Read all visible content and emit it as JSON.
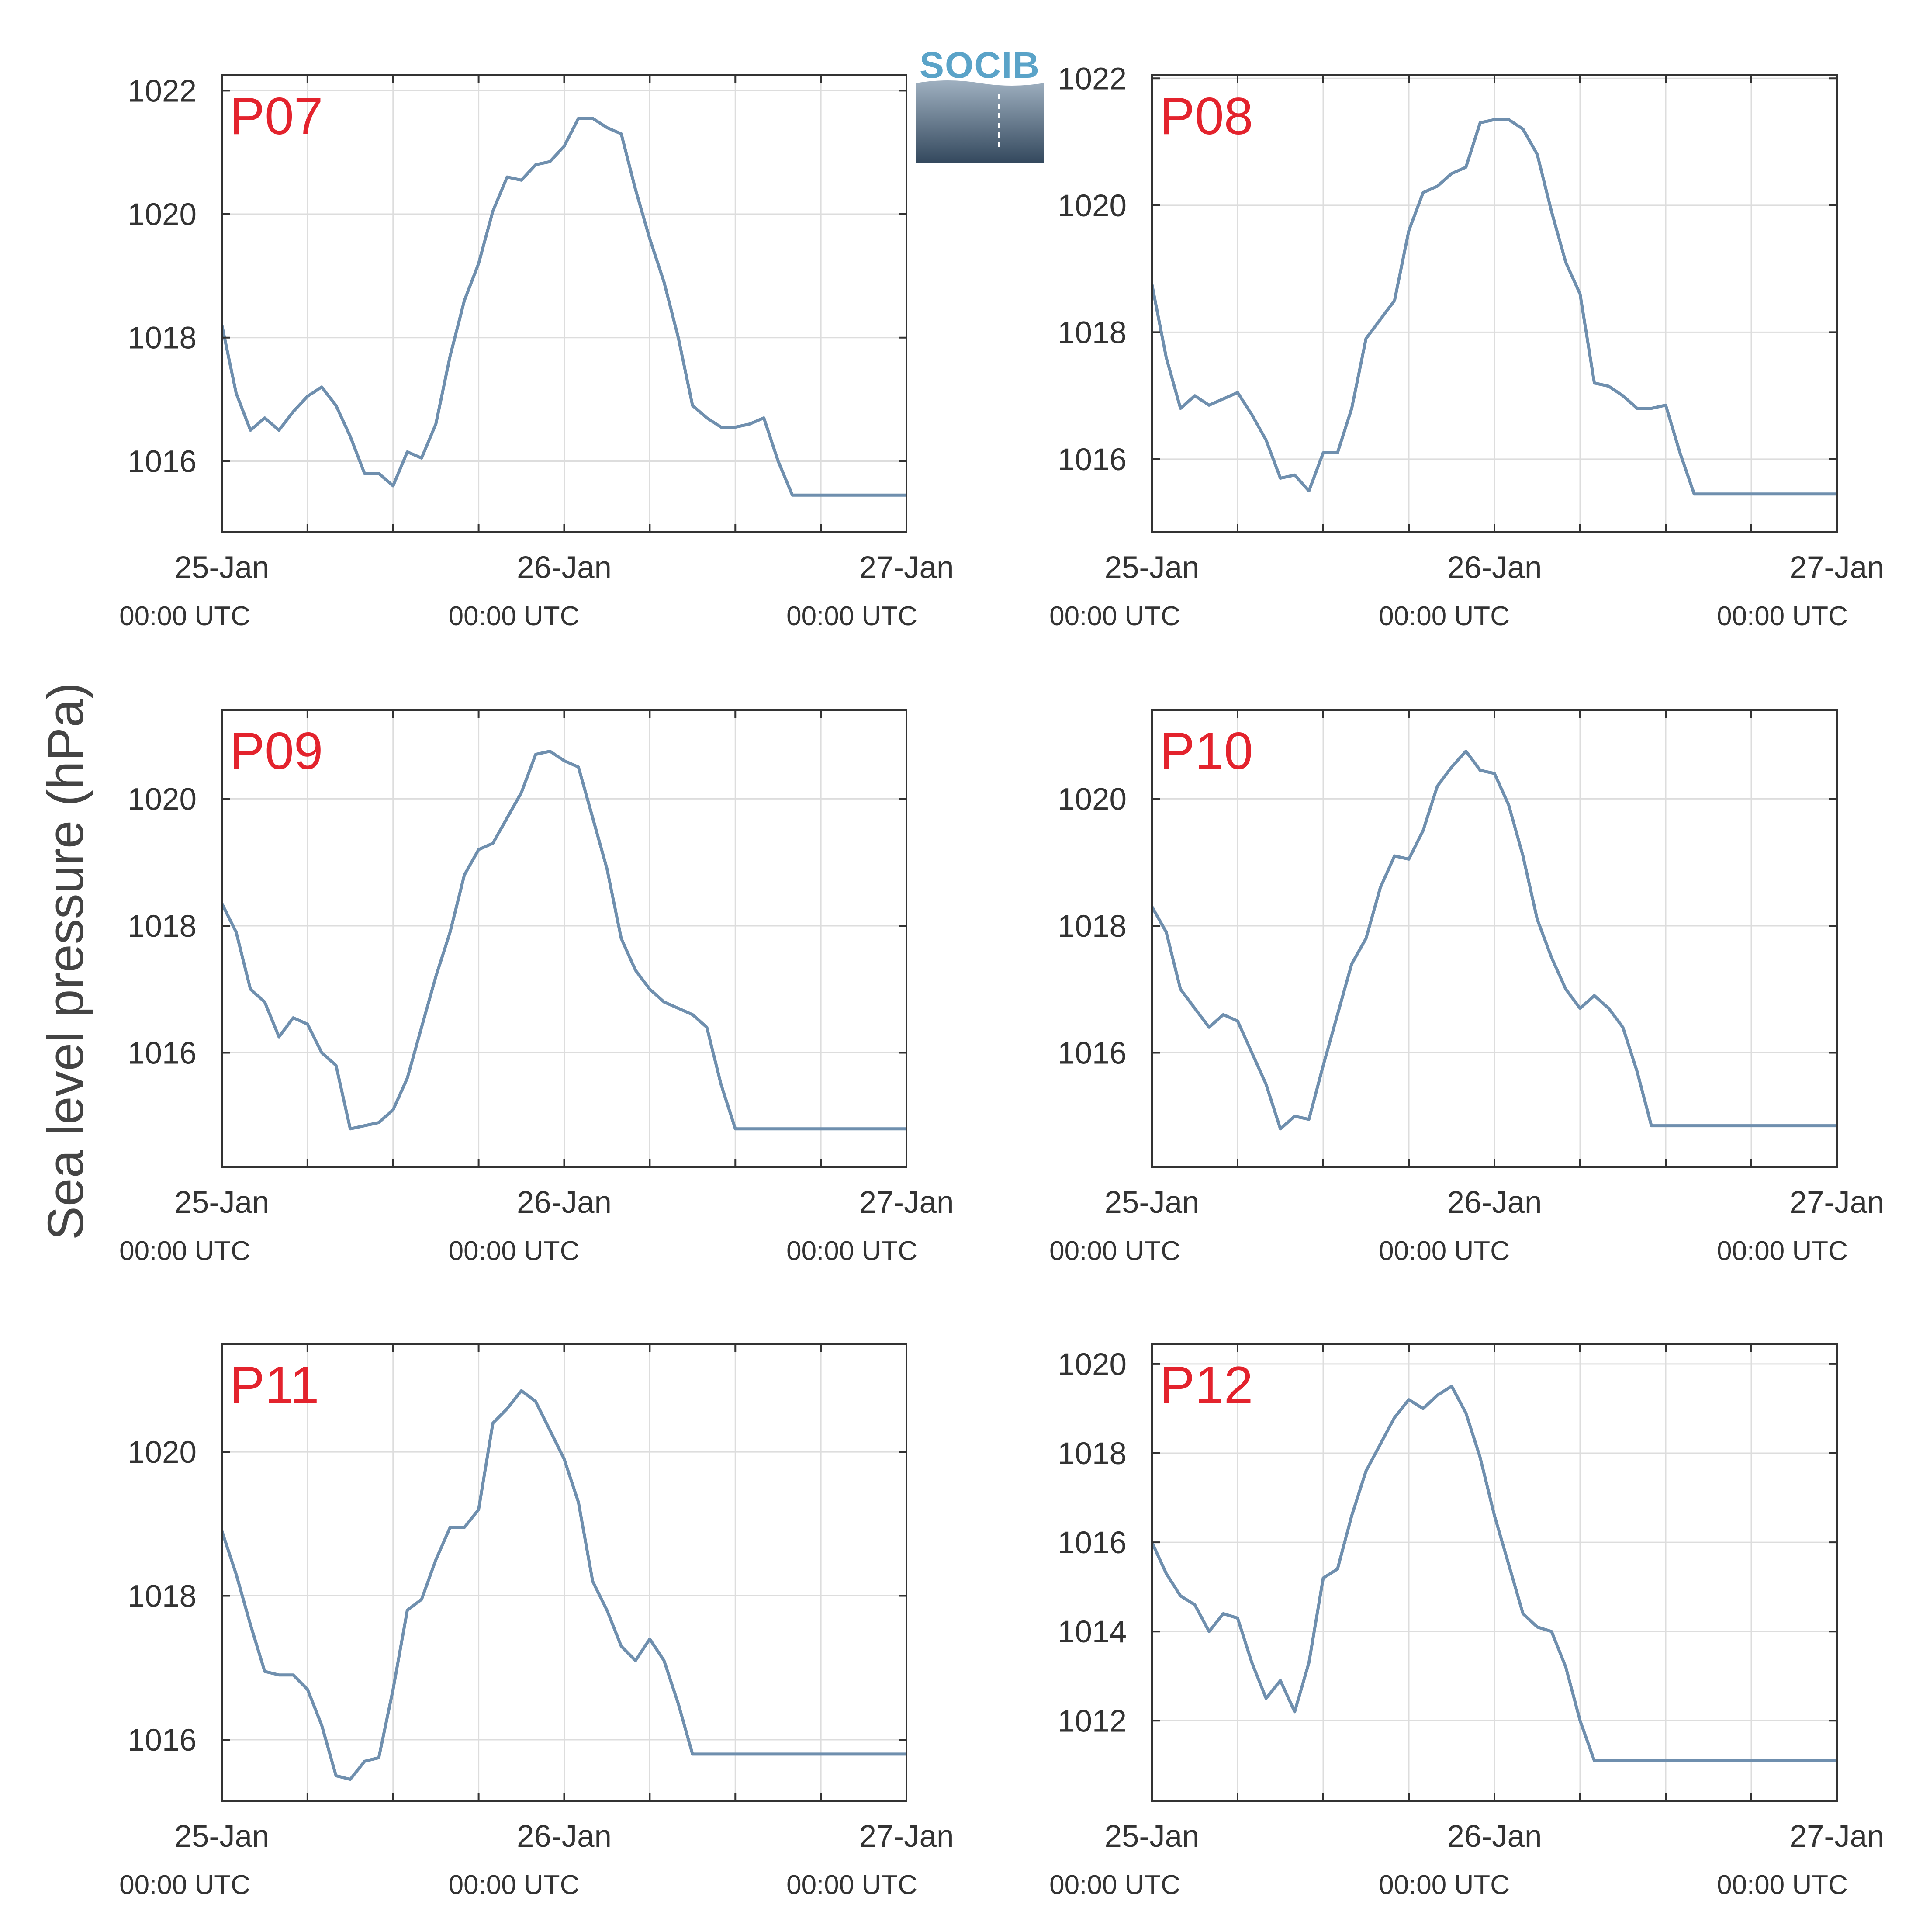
{
  "ylabel": "Sea level pressure (hPa)",
  "logo_text": "SOCIB",
  "colors": {
    "line": "#6f8fae",
    "label": "#e3232d",
    "axis": "#333333",
    "grid": "#dddddd"
  },
  "chart_data": [
    {
      "type": "line",
      "label": "P07",
      "x_ticks": [
        "25-Jan",
        "26-Jan",
        "27-Jan"
      ],
      "x_sub": [
        "00:00 UTC",
        "00:00 UTC",
        "00:00 UTC"
      ],
      "x_range": [
        0,
        48
      ],
      "ylim": [
        1014.85,
        1022.25
      ],
      "y_ticks": [
        1016,
        1018,
        1020,
        1022
      ],
      "hours": [
        0,
        1,
        2,
        3,
        4,
        5,
        6,
        7,
        8,
        9,
        10,
        11,
        12,
        13,
        14,
        15,
        16,
        17,
        18,
        19,
        20,
        21,
        22,
        23,
        24,
        25,
        26,
        27,
        28,
        29,
        30,
        31,
        32,
        33,
        34,
        35,
        36,
        37,
        38,
        39,
        40,
        41,
        42,
        43,
        44,
        45,
        46,
        47,
        48
      ],
      "values": [
        1018.2,
        1017.1,
        1016.5,
        1016.7,
        1016.5,
        1016.8,
        1017.05,
        1017.2,
        1016.9,
        1016.4,
        1015.8,
        1015.8,
        1015.6,
        1016.15,
        1016.05,
        1016.6,
        1017.7,
        1018.6,
        1019.2,
        1020.05,
        1020.6,
        1020.55,
        1020.8,
        1020.85,
        1021.1,
        1021.55,
        1021.55,
        1021.4,
        1021.3,
        1020.4,
        1019.6,
        1018.9,
        1018.0,
        1016.9,
        1016.7,
        1016.55,
        1016.55,
        1016.6,
        1016.7,
        1016.0,
        1015.45,
        1015.45,
        1015.45,
        1015.45,
        1015.45,
        1015.45,
        1015.45,
        1015.45,
        1015.45
      ]
    },
    {
      "type": "line",
      "label": "P08",
      "x_ticks": [
        "25-Jan",
        "26-Jan",
        "27-Jan"
      ],
      "x_sub": [
        "00:00 UTC",
        "00:00 UTC",
        "00:00 UTC"
      ],
      "x_range": [
        0,
        48
      ],
      "ylim": [
        1014.85,
        1022.05
      ],
      "y_ticks": [
        1016,
        1018,
        1020,
        1022
      ],
      "hours": [
        0,
        1,
        2,
        3,
        4,
        5,
        6,
        7,
        8,
        9,
        10,
        11,
        12,
        13,
        14,
        15,
        16,
        17,
        18,
        19,
        20,
        21,
        22,
        23,
        24,
        25,
        26,
        27,
        28,
        29,
        30,
        31,
        32,
        33,
        34,
        35,
        36,
        37,
        38,
        39,
        40,
        41,
        42,
        43,
        44,
        45,
        46,
        47,
        48
      ],
      "values": [
        1018.75,
        1017.6,
        1016.8,
        1017.0,
        1016.85,
        1016.95,
        1017.05,
        1016.7,
        1016.3,
        1015.7,
        1015.75,
        1015.5,
        1016.1,
        1016.1,
        1016.8,
        1017.9,
        1018.2,
        1018.5,
        1019.6,
        1020.2,
        1020.3,
        1020.5,
        1020.6,
        1021.3,
        1021.35,
        1021.35,
        1021.2,
        1020.8,
        1019.9,
        1019.1,
        1018.6,
        1017.2,
        1017.15,
        1017.0,
        1016.8,
        1016.8,
        1016.85,
        1016.1,
        1015.45,
        1015.45,
        1015.45,
        1015.45,
        1015.45,
        1015.45,
        1015.45,
        1015.45,
        1015.45,
        1015.45,
        1015.45
      ]
    },
    {
      "type": "line",
      "label": "P09",
      "x_ticks": [
        "25-Jan",
        "26-Jan",
        "27-Jan"
      ],
      "x_sub": [
        "00:00 UTC",
        "00:00 UTC",
        "00:00 UTC"
      ],
      "x_range": [
        0,
        48
      ],
      "ylim": [
        1014.2,
        1021.4
      ],
      "y_ticks": [
        1016,
        1018,
        1020
      ],
      "hours": [
        0,
        1,
        2,
        3,
        4,
        5,
        6,
        7,
        8,
        9,
        10,
        11,
        12,
        13,
        14,
        15,
        16,
        17,
        18,
        19,
        20,
        21,
        22,
        23,
        24,
        25,
        26,
        27,
        28,
        29,
        30,
        31,
        32,
        33,
        34,
        35,
        36,
        37,
        38,
        39,
        40,
        41,
        42,
        43,
        44,
        45,
        46,
        47,
        48
      ],
      "values": [
        1018.35,
        1017.9,
        1017.0,
        1016.8,
        1016.25,
        1016.55,
        1016.45,
        1016.0,
        1015.8,
        1014.8,
        1014.85,
        1014.9,
        1015.1,
        1015.6,
        1016.4,
        1017.2,
        1017.9,
        1018.8,
        1019.2,
        1019.3,
        1019.7,
        1020.1,
        1020.7,
        1020.75,
        1020.6,
        1020.5,
        1019.7,
        1018.9,
        1017.8,
        1017.3,
        1017.0,
        1016.8,
        1016.7,
        1016.6,
        1016.4,
        1015.5,
        1014.8,
        1014.8,
        1014.8,
        1014.8,
        1014.8,
        1014.8,
        1014.8,
        1014.8,
        1014.8,
        1014.8,
        1014.8,
        1014.8,
        1014.8
      ]
    },
    {
      "type": "line",
      "label": "P10",
      "x_ticks": [
        "25-Jan",
        "26-Jan",
        "27-Jan"
      ],
      "x_sub": [
        "00:00 UTC",
        "00:00 UTC",
        "00:00 UTC"
      ],
      "x_range": [
        0,
        48
      ],
      "ylim": [
        1014.2,
        1021.4
      ],
      "y_ticks": [
        1016,
        1018,
        1020
      ],
      "hours": [
        0,
        1,
        2,
        3,
        4,
        5,
        6,
        7,
        8,
        9,
        10,
        11,
        12,
        13,
        14,
        15,
        16,
        17,
        18,
        19,
        20,
        21,
        22,
        23,
        24,
        25,
        26,
        27,
        28,
        29,
        30,
        31,
        32,
        33,
        34,
        35,
        36,
        37,
        38,
        39,
        40,
        41,
        42,
        43,
        44,
        45,
        46,
        47,
        48
      ],
      "values": [
        1018.3,
        1017.9,
        1017.0,
        1016.7,
        1016.4,
        1016.6,
        1016.5,
        1016.0,
        1015.5,
        1014.8,
        1015.0,
        1014.95,
        1015.8,
        1016.6,
        1017.4,
        1017.8,
        1018.6,
        1019.1,
        1019.05,
        1019.5,
        1020.2,
        1020.5,
        1020.75,
        1020.45,
        1020.4,
        1019.9,
        1019.1,
        1018.1,
        1017.5,
        1017.0,
        1016.7,
        1016.9,
        1016.7,
        1016.4,
        1015.7,
        1014.85,
        1014.85,
        1014.85,
        1014.85,
        1014.85,
        1014.85,
        1014.85,
        1014.85,
        1014.85,
        1014.85,
        1014.85,
        1014.85,
        1014.85,
        1014.85
      ]
    },
    {
      "type": "line",
      "label": "P11",
      "x_ticks": [
        "25-Jan",
        "26-Jan",
        "27-Jan"
      ],
      "x_sub": [
        "00:00 UTC",
        "00:00 UTC",
        "00:00 UTC"
      ],
      "x_range": [
        0,
        48
      ],
      "ylim": [
        1015.15,
        1021.5
      ],
      "y_ticks": [
        1016,
        1018,
        1020
      ],
      "hours": [
        0,
        1,
        2,
        3,
        4,
        5,
        6,
        7,
        8,
        9,
        10,
        11,
        12,
        13,
        14,
        15,
        16,
        17,
        18,
        19,
        20,
        21,
        22,
        23,
        24,
        25,
        26,
        27,
        28,
        29,
        30,
        31,
        32,
        33,
        34,
        35,
        36,
        37,
        38,
        39,
        40,
        41,
        42,
        43,
        44,
        45,
        46,
        47,
        48
      ],
      "values": [
        1018.9,
        1018.3,
        1017.6,
        1016.95,
        1016.9,
        1016.9,
        1016.7,
        1016.2,
        1015.5,
        1015.45,
        1015.7,
        1015.75,
        1016.7,
        1017.8,
        1017.95,
        1018.5,
        1018.95,
        1018.95,
        1019.2,
        1020.4,
        1020.6,
        1020.85,
        1020.7,
        1020.3,
        1019.9,
        1019.3,
        1018.2,
        1017.8,
        1017.3,
        1017.1,
        1017.4,
        1017.1,
        1016.5,
        1015.8,
        1015.8,
        1015.8,
        1015.8,
        1015.8,
        1015.8,
        1015.8,
        1015.8,
        1015.8,
        1015.8,
        1015.8,
        1015.8,
        1015.8,
        1015.8,
        1015.8,
        1015.8
      ]
    },
    {
      "type": "line",
      "label": "P12",
      "x_ticks": [
        "25-Jan",
        "26-Jan",
        "27-Jan"
      ],
      "x_sub": [
        "00:00 UTC",
        "00:00 UTC",
        "00:00 UTC"
      ],
      "x_range": [
        0,
        48
      ],
      "ylim": [
        1010.2,
        1020.45
      ],
      "y_ticks": [
        1012,
        1014,
        1016,
        1018,
        1020
      ],
      "hours": [
        0,
        1,
        2,
        3,
        4,
        5,
        6,
        7,
        8,
        9,
        10,
        11,
        12,
        13,
        14,
        15,
        16,
        17,
        18,
        19,
        20,
        21,
        22,
        23,
        24,
        25,
        26,
        27,
        28,
        29,
        30,
        31,
        32,
        33,
        34,
        35,
        36,
        37,
        38,
        39,
        40,
        41,
        42,
        43,
        44,
        45,
        46,
        47,
        48
      ],
      "values": [
        1016.0,
        1015.3,
        1014.8,
        1014.6,
        1014.0,
        1014.4,
        1014.3,
        1013.3,
        1012.5,
        1012.9,
        1012.2,
        1013.3,
        1015.2,
        1015.4,
        1016.6,
        1017.6,
        1018.2,
        1018.8,
        1019.2,
        1019.0,
        1019.3,
        1019.5,
        1018.9,
        1017.9,
        1016.6,
        1015.5,
        1014.4,
        1014.1,
        1014.0,
        1013.2,
        1012.0,
        1011.1,
        1011.1,
        1011.1,
        1011.1,
        1011.1,
        1011.1,
        1011.1,
        1011.1,
        1011.1,
        1011.1,
        1011.1,
        1011.1,
        1011.1,
        1011.1,
        1011.1,
        1011.1,
        1011.1,
        1011.1
      ]
    }
  ]
}
